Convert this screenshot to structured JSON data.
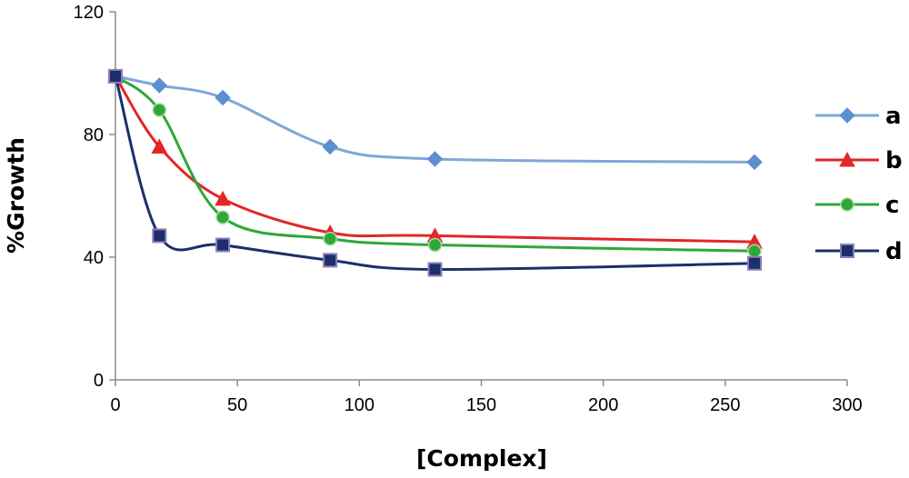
{
  "chart_data": {
    "type": "line",
    "title": "",
    "xlabel": "[Complex]",
    "ylabel": "%Growth",
    "xlim": [
      0,
      300
    ],
    "ylim": [
      0,
      120
    ],
    "x_ticks": [
      0,
      50,
      100,
      150,
      200,
      250,
      300
    ],
    "y_ticks": [
      0,
      40,
      80,
      120
    ],
    "x_tick_labels": [
      "0",
      "50",
      "100",
      "150",
      "200",
      "250",
      "300"
    ],
    "y_tick_labels": [
      "0",
      "40",
      "80",
      "120"
    ],
    "grid": false,
    "legend_position": "right",
    "x": [
      0,
      18,
      44,
      88,
      131,
      262
    ],
    "series": [
      {
        "name": "a",
        "color": "#7ea7d8",
        "marker": "diamond",
        "values": [
          99,
          96,
          92,
          76,
          72,
          71
        ]
      },
      {
        "name": "b",
        "color": "#e32626",
        "marker": "triangle",
        "values": [
          99,
          76,
          59,
          48,
          47,
          45
        ]
      },
      {
        "name": "c",
        "color": "#2ea836",
        "marker": "circle",
        "values": [
          99,
          88,
          53,
          46,
          44,
          42
        ]
      },
      {
        "name": "d",
        "color": "#1c2f6b",
        "marker": "square",
        "values": [
          99,
          47,
          44,
          39,
          36,
          38
        ]
      }
    ]
  }
}
